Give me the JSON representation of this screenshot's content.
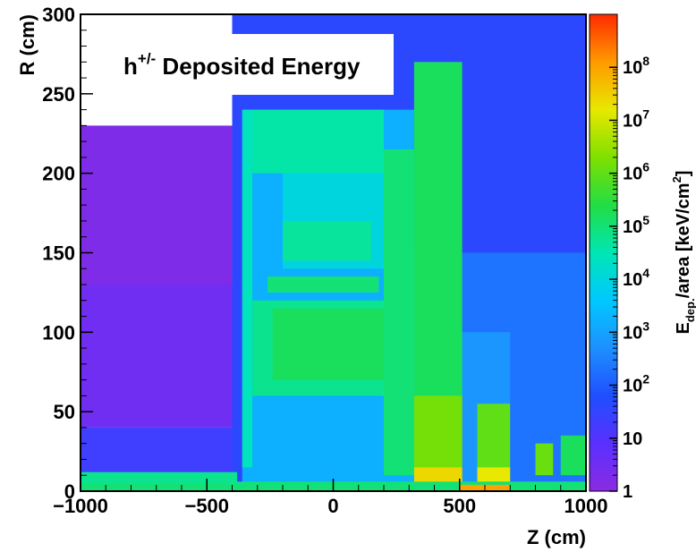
{
  "chart_data": {
    "type": "heatmap",
    "title": "h⁺ᐟ Deposited Energy",
    "title_main": "h",
    "title_sup": "+/-",
    "title_rest": " Deposited Energy",
    "xlabel": "Z (cm)",
    "ylabel": "R (cm)",
    "xlim": [
      -1000,
      1000
    ],
    "ylim": [
      0,
      300
    ],
    "x_ticks": [
      -1000,
      -500,
      0,
      500,
      1000
    ],
    "y_ticks": [
      0,
      50,
      100,
      150,
      200,
      250,
      300
    ],
    "x_tick_labels": [
      "−1000",
      "−500",
      "0",
      "500",
      "1000"
    ],
    "y_tick_labels": [
      "0",
      "50",
      "100",
      "150",
      "200",
      "250",
      "300"
    ],
    "colorbar": {
      "label_prefix": "E",
      "label_sub": "dep.",
      "label_mid": "/area [keV/cm",
      "label_sup": "2",
      "label_suffix": "]",
      "scale": "log",
      "range": [
        1,
        1000000000
      ],
      "tick_labels": [
        {
          "value": 1,
          "base": "1",
          "exp": ""
        },
        {
          "value": 10,
          "base": "10",
          "exp": ""
        },
        {
          "value": 100,
          "base": "10",
          "exp": "2"
        },
        {
          "value": 1000,
          "base": "10",
          "exp": "3"
        },
        {
          "value": 10000,
          "base": "10",
          "exp": "4"
        },
        {
          "value": 100000,
          "base": "10",
          "exp": "5"
        },
        {
          "value": 1000000,
          "base": "10",
          "exp": "6"
        },
        {
          "value": 10000000,
          "base": "10",
          "exp": "7"
        },
        {
          "value": 100000000,
          "base": "10",
          "exp": "8"
        }
      ],
      "colors": [
        "#8a2be2",
        "#5a30ff",
        "#1f4fff",
        "#1e90ff",
        "#00c8ff",
        "#00e6b4",
        "#22dd44",
        "#7fe000",
        "#e8e800",
        "#ff9a00",
        "#ff2a00"
      ]
    },
    "background_color": "#ffffff",
    "regions": [
      {
        "x": [
          -1000,
          -380
        ],
        "y": [
          0,
          40
        ],
        "log10_value": 1.3
      },
      {
        "x": [
          -1000,
          -380
        ],
        "y": [
          40,
          130
        ],
        "log10_value": 0.5
      },
      {
        "x": [
          -1000,
          -380
        ],
        "y": [
          130,
          230
        ],
        "log10_value": 0.2
      },
      {
        "x": [
          -400,
          1000
        ],
        "y": [
          0,
          300
        ],
        "log10_value": 1.6
      },
      {
        "x": [
          300,
          1000
        ],
        "y": [
          0,
          150
        ],
        "log10_value": 2.3
      },
      {
        "x": [
          300,
          700
        ],
        "y": [
          0,
          100
        ],
        "log10_value": 2.8
      },
      {
        "x": [
          -360,
          320
        ],
        "y": [
          0,
          240
        ],
        "log10_value": 3.2
      },
      {
        "x": [
          -360,
          -320
        ],
        "y": [
          15,
          240
        ],
        "log10_value": 4.4
      },
      {
        "x": [
          -320,
          200
        ],
        "y": [
          200,
          240
        ],
        "log10_value": 4.6
      },
      {
        "x": [
          -200,
          200
        ],
        "y": [
          140,
          200
        ],
        "log10_value": 4.0
      },
      {
        "x": [
          -200,
          150
        ],
        "y": [
          145,
          170
        ],
        "log10_value": 4.7
      },
      {
        "x": [
          -260,
          180
        ],
        "y": [
          125,
          135
        ],
        "log10_value": 5.0
      },
      {
        "x": [
          -320,
          200
        ],
        "y": [
          60,
          120
        ],
        "log10_value": 4.8
      },
      {
        "x": [
          -240,
          200
        ],
        "y": [
          70,
          115
        ],
        "log10_value": 5.2
      },
      {
        "x": [
          200,
          320
        ],
        "y": [
          10,
          215
        ],
        "log10_value": 5.0
      },
      {
        "x": [
          320,
          510
        ],
        "y": [
          0,
          270
        ],
        "log10_value": 5.2
      },
      {
        "x": [
          320,
          510
        ],
        "y": [
          0,
          60
        ],
        "log10_value": 6.2
      },
      {
        "x": [
          320,
          510
        ],
        "y": [
          0,
          15
        ],
        "log10_value": 7.4
      },
      {
        "x": [
          570,
          700
        ],
        "y": [
          0,
          55
        ],
        "log10_value": 6.0
      },
      {
        "x": [
          570,
          700
        ],
        "y": [
          0,
          15
        ],
        "log10_value": 7.2
      },
      {
        "x": [
          800,
          870
        ],
        "y": [
          10,
          30
        ],
        "log10_value": 6.1
      },
      {
        "x": [
          900,
          1000
        ],
        "y": [
          10,
          35
        ],
        "log10_value": 5.2
      },
      {
        "x": [
          -1000,
          1000
        ],
        "y": [
          0,
          6
        ],
        "log10_value": 5.0
      },
      {
        "x": [
          -1000,
          -380
        ],
        "y": [
          5,
          12
        ],
        "log10_value": 4.8
      },
      {
        "x": [
          500,
          700
        ],
        "y": [
          0,
          4
        ],
        "log10_value": 8.0
      }
    ]
  }
}
